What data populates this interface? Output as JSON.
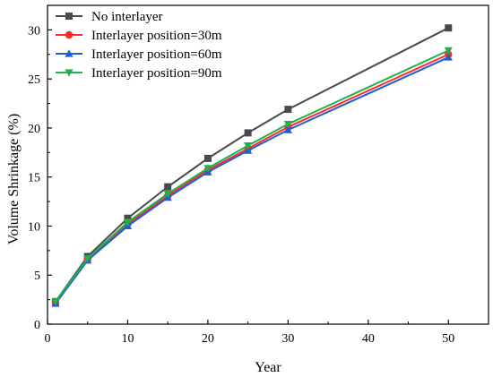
{
  "chart_data": {
    "type": "line",
    "title": "",
    "xlabel": "Year",
    "ylabel": "Volume Shrinkage (%)",
    "xlim": [
      0,
      55
    ],
    "ylim": [
      0,
      32.5
    ],
    "xticks": [
      0,
      10,
      20,
      30,
      40,
      50
    ],
    "yticks": [
      0,
      5,
      10,
      15,
      20,
      25,
      30
    ],
    "legend_position": "top-left",
    "grid": false,
    "x": [
      1,
      5,
      10,
      15,
      20,
      25,
      30,
      50
    ],
    "series": [
      {
        "name": "No interlayer",
        "color": "#4a4a4a",
        "marker": "square",
        "values": [
          2.3,
          6.9,
          10.8,
          14.0,
          16.9,
          19.5,
          21.9,
          30.2
        ]
      },
      {
        "name": "Interlayer position=30m",
        "color": "#ff2a2a",
        "marker": "circle",
        "values": [
          2.2,
          6.6,
          10.2,
          13.1,
          15.7,
          17.9,
          20.1,
          27.5
        ]
      },
      {
        "name": "Interlayer position=60m",
        "color": "#1f5fd6",
        "marker": "triangle-up",
        "values": [
          2.1,
          6.5,
          10.0,
          12.9,
          15.5,
          17.7,
          19.8,
          27.2
        ]
      },
      {
        "name": "Interlayer position=90m",
        "color": "#1db34a",
        "marker": "triangle-down",
        "values": [
          2.3,
          6.7,
          10.4,
          13.3,
          15.9,
          18.2,
          20.4,
          27.9
        ]
      }
    ]
  }
}
